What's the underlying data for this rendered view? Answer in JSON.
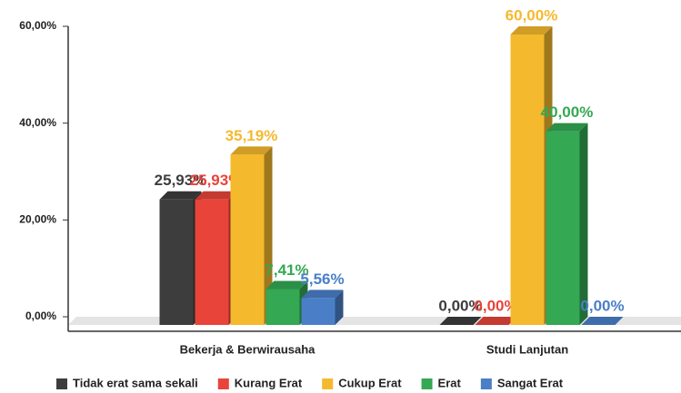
{
  "chart_data": {
    "type": "bar3d",
    "categories": [
      "Bekerja & Berwirausaha",
      "Studi Lanjutan"
    ],
    "series": [
      {
        "name": "Tidak erat sama sekali",
        "color": "#3d3d3d",
        "values": [
          25.93,
          0
        ],
        "value_labels": [
          "25,93%",
          "0,00%"
        ]
      },
      {
        "name": "Kurang Erat",
        "color": "#e8443a",
        "values": [
          25.93,
          0
        ],
        "value_labels": [
          "25,93%",
          "0,00%"
        ]
      },
      {
        "name": "Cukup Erat",
        "color": "#f5b92e",
        "values": [
          35.19,
          60
        ],
        "value_labels": [
          "35,19%",
          "60,00%"
        ]
      },
      {
        "name": "Erat",
        "color": "#34a853",
        "values": [
          7.41,
          40
        ],
        "value_labels": [
          "7,41%",
          "40,00%"
        ]
      },
      {
        "name": "Sangat Erat",
        "color": "#4a7fc8",
        "values": [
          5.56,
          0
        ],
        "value_labels": [
          "5,56%",
          "0,00%"
        ]
      }
    ],
    "ylim": [
      0,
      60
    ],
    "yticks": [
      {
        "value": 0,
        "label": "0,00%"
      },
      {
        "value": 20,
        "label": "20,00%"
      },
      {
        "value": 40,
        "label": "40,00%"
      },
      {
        "value": 60,
        "label": "60,00%"
      }
    ],
    "legend": "bottom"
  }
}
